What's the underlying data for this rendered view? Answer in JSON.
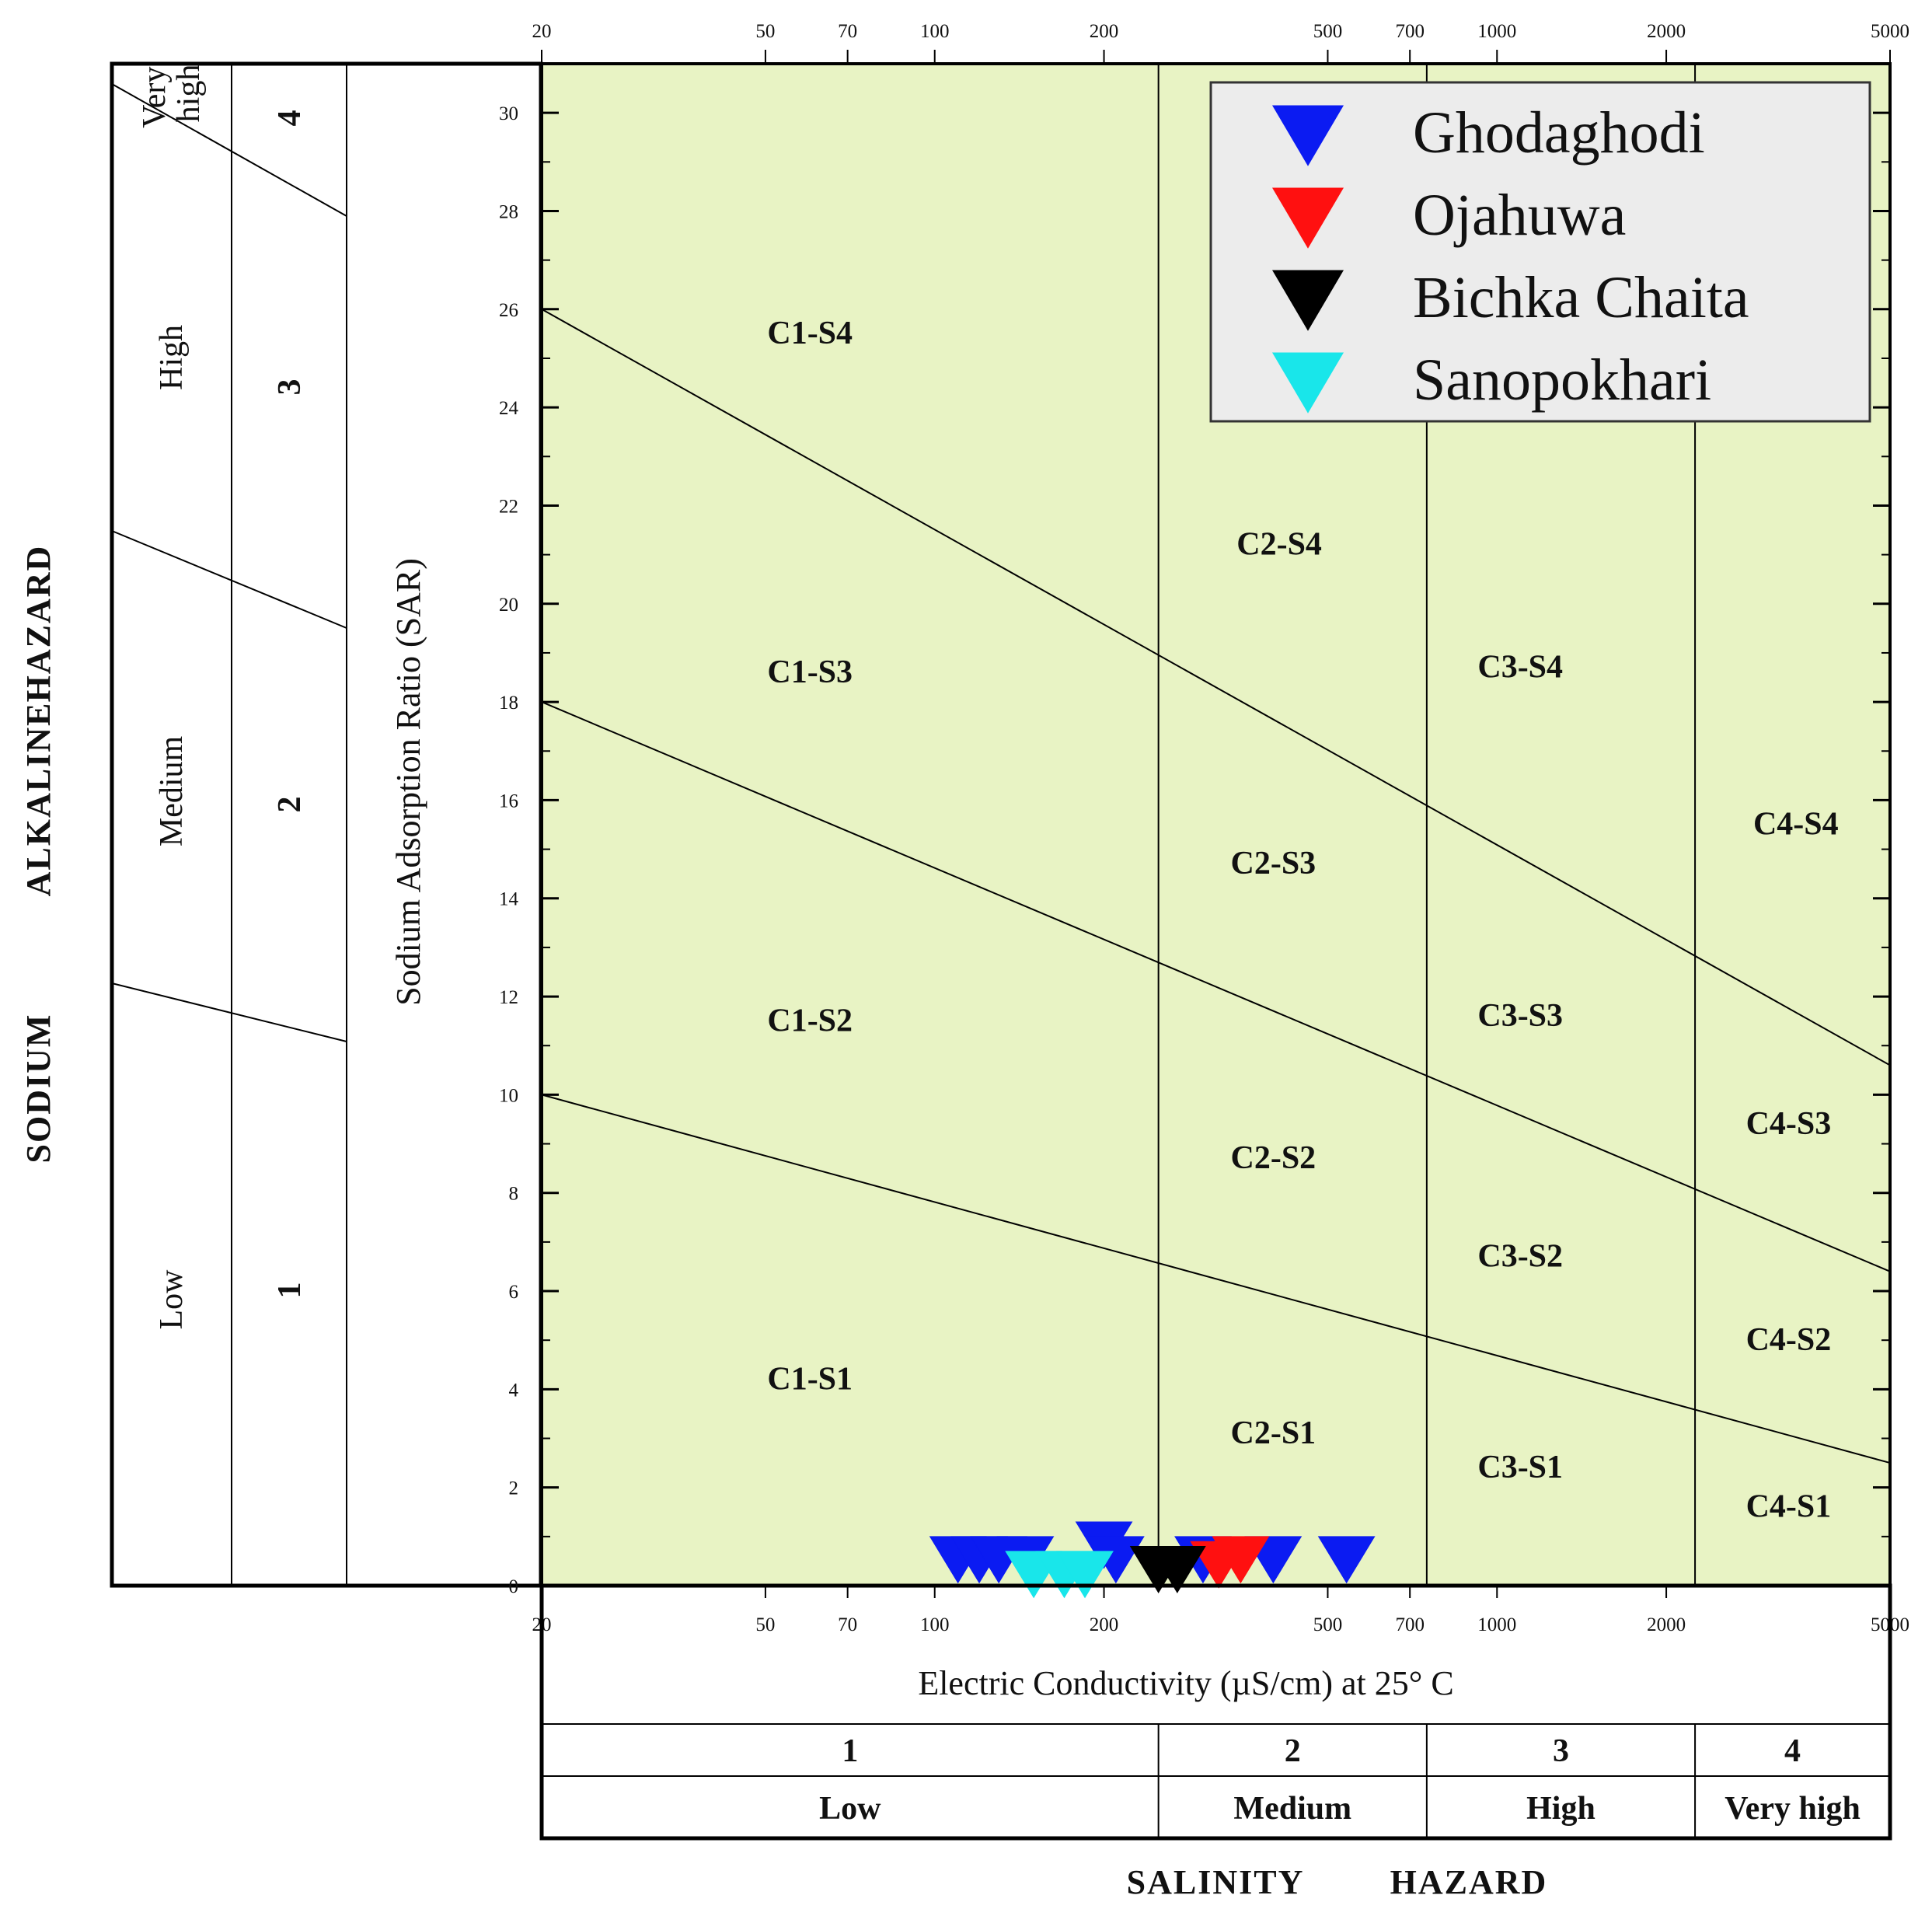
{
  "chart_data": {
    "type": "scatter",
    "title": "",
    "xlabel": "Electric Conductivity (µS/cm) at 25° C",
    "ylabel": "Sodium Adsorption Ratio (SAR)",
    "xscale": "log",
    "xlim": [
      20,
      5000
    ],
    "ylim": [
      0,
      31
    ],
    "x_ticks": [
      20,
      50,
      70,
      100,
      200,
      500,
      700,
      1000,
      2000,
      5000
    ],
    "y_ticks": [
      0,
      2,
      4,
      6,
      8,
      10,
      12,
      14,
      16,
      18,
      20,
      22,
      24,
      26,
      28,
      30
    ],
    "grid": false,
    "background_color": "#e8f3c4",
    "legend_position": "top-right",
    "series": [
      {
        "name": "Ghodaghodi",
        "color": "#0b1bf2",
        "marker": "triangle-down",
        "points": [
          [
            110,
            0.6
          ],
          [
            120,
            0.6
          ],
          [
            130,
            0.6
          ],
          [
            145,
            0.6
          ],
          [
            200,
            0.9
          ],
          [
            210,
            0.6
          ],
          [
            300,
            0.6
          ],
          [
            400,
            0.6
          ],
          [
            540,
            0.6
          ]
        ]
      },
      {
        "name": "Ojahuwa",
        "color": "#ff1010",
        "marker": "triangle-down",
        "points": [
          [
            320,
            0.5
          ],
          [
            350,
            0.6
          ]
        ]
      },
      {
        "name": "Bichka Chaita",
        "color": "#000000",
        "marker": "triangle-down",
        "points": [
          [
            250,
            0.4
          ],
          [
            270,
            0.4
          ]
        ]
      },
      {
        "name": "Sanopokhari",
        "color": "#19e6ea",
        "marker": "triangle-down",
        "points": [
          [
            150,
            0.3
          ],
          [
            170,
            0.3
          ],
          [
            185,
            0.3
          ]
        ]
      }
    ],
    "salinity_boundaries": [
      250,
      750,
      2250
    ],
    "sodium_boundary_lines": [
      {
        "sar_at_20": 10,
        "sar_at_5000": 2.5
      },
      {
        "sar_at_20": 18,
        "sar_at_5000": 6.4
      },
      {
        "sar_at_20": 26,
        "sar_at_5000": 10.6
      }
    ],
    "zone_labels": [
      {
        "text": "C1-S4",
        "ec": 60,
        "sar": 25.3
      },
      {
        "text": "C1-S3",
        "ec": 60,
        "sar": 18.4
      },
      {
        "text": "C1-S2",
        "ec": 60,
        "sar": 11.3
      },
      {
        "text": "C1-S1",
        "ec": 60,
        "sar": 4.0
      },
      {
        "text": "C2-S4",
        "ec": 410,
        "sar": 21.0
      },
      {
        "text": "C2-S3",
        "ec": 400,
        "sar": 14.5
      },
      {
        "text": "C2-S2",
        "ec": 400,
        "sar": 8.5
      },
      {
        "text": "C2-S1",
        "ec": 400,
        "sar": 2.9
      },
      {
        "text": "C3-S4",
        "ec": 1100,
        "sar": 18.5
      },
      {
        "text": "C3-S3",
        "ec": 1100,
        "sar": 11.4
      },
      {
        "text": "C3-S2",
        "ec": 1100,
        "sar": 6.5
      },
      {
        "text": "C3-S1",
        "ec": 1100,
        "sar": 2.2
      },
      {
        "text": "C4-S4",
        "ec": 3400,
        "sar": 15.3
      },
      {
        "text": "C4-S3",
        "ec": 3300,
        "sar": 9.2
      },
      {
        "text": "C4-S2",
        "ec": 3300,
        "sar": 4.8
      },
      {
        "text": "C4-S1",
        "ec": 3300,
        "sar": 1.4
      }
    ]
  },
  "sodium_hazard": {
    "title_words": [
      "SODIUM",
      "ALKALINE",
      "HAZARD"
    ],
    "classes": [
      {
        "number": "1",
        "label": "Low"
      },
      {
        "number": "2",
        "label": "Medium"
      },
      {
        "number": "3",
        "label": "High"
      },
      {
        "number": "4",
        "label": "Very high"
      }
    ]
  },
  "salinity_hazard": {
    "title_words": [
      "SALINITY",
      "HAZARD"
    ],
    "classes": [
      {
        "number": "1",
        "label": "Low"
      },
      {
        "number": "2",
        "label": "Medium"
      },
      {
        "number": "3",
        "label": "High"
      },
      {
        "number": "4",
        "label": "Very high"
      }
    ]
  }
}
